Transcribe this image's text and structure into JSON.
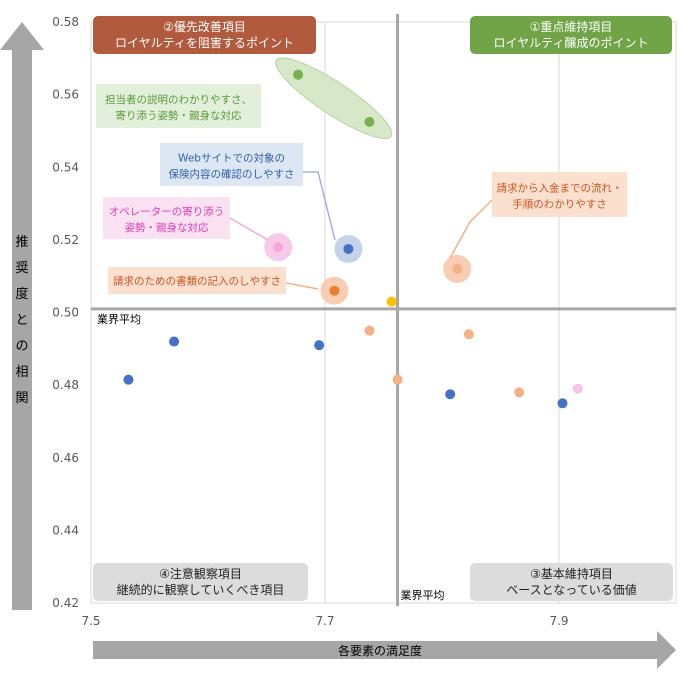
{
  "chart_data": {
    "type": "scatter",
    "xlabel": "各要素の満足度",
    "ylabel": "推奨度との相関",
    "xlim": [
      7.5,
      8.0
    ],
    "ylim": [
      0.42,
      0.58
    ],
    "x_ticks": [
      7.5,
      7.7,
      7.9
    ],
    "x_tick_labels": [
      "7.5",
      "7.7",
      "7.9"
    ],
    "y_ticks": [
      0.42,
      0.44,
      0.46,
      0.48,
      0.5,
      0.52,
      0.54,
      0.56,
      0.58
    ],
    "y_tick_labels": [
      "0.42",
      "0.44",
      "0.46",
      "0.48",
      "0.50",
      "0.52",
      "0.54",
      "0.56",
      "0.58"
    ],
    "grid": "vertical and horizontal",
    "average_lines": {
      "x": 7.762,
      "y": 0.501,
      "x_label": "業界平均",
      "y_label": "業界平均"
    },
    "quadrants": [
      {
        "id": "tl",
        "position": "top-left",
        "line1": "②優先改善項目",
        "line2": "ロイヤルティを阻害するポイント",
        "fill": "#b25a3e",
        "text_color": "#ffffff"
      },
      {
        "id": "tr",
        "position": "top-right",
        "line1": "①重点維持項目",
        "line2": "ロイヤルティ醸成のポイント",
        "fill": "#70a447",
        "text_color": "#ffffff"
      },
      {
        "id": "bl",
        "position": "bottom-left",
        "line1": "④注意観察項目",
        "line2": "継続的に観察していくべき項目",
        "fill": "#dcdcdc",
        "text_color": "#222222"
      },
      {
        "id": "br",
        "position": "bottom-right",
        "line1": "③基本維持項目",
        "line2": "ベースとなっている価値",
        "fill": "#dcdcdc",
        "text_color": "#222222"
      }
    ],
    "points": [
      {
        "x": 7.677,
        "y": 0.5655,
        "color": "#78b050"
      },
      {
        "x": 7.738,
        "y": 0.5525,
        "color": "#78b050"
      },
      {
        "x": 7.72,
        "y": 0.5175,
        "color": "#4472c4"
      },
      {
        "x": 7.66,
        "y": 0.518,
        "color": "#f4a7d8"
      },
      {
        "x": 7.708,
        "y": 0.506,
        "color": "#ed7d31"
      },
      {
        "x": 7.813,
        "y": 0.512,
        "color": "#f4b183"
      },
      {
        "x": 7.757,
        "y": 0.503,
        "color": "#ffc000"
      },
      {
        "x": 7.571,
        "y": 0.492,
        "color": "#4472c4"
      },
      {
        "x": 7.695,
        "y": 0.491,
        "color": "#4472c4"
      },
      {
        "x": 7.738,
        "y": 0.495,
        "color": "#f4b183"
      },
      {
        "x": 7.823,
        "y": 0.494,
        "color": "#f4b183"
      },
      {
        "x": 7.532,
        "y": 0.4815,
        "color": "#4472c4"
      },
      {
        "x": 7.762,
        "y": 0.4815,
        "color": "#f4b183"
      },
      {
        "x": 7.807,
        "y": 0.4775,
        "color": "#4472c4"
      },
      {
        "x": 7.866,
        "y": 0.478,
        "color": "#f4b183"
      },
      {
        "x": 7.903,
        "y": 0.475,
        "color": "#4472c4"
      },
      {
        "x": 7.916,
        "y": 0.479,
        "color": "#f4c6e6"
      }
    ],
    "callouts": [
      {
        "id": "c1",
        "line1": "担当者の説明のわかりやすさ、",
        "line2": "寄り添う姿勢・親身な対応",
        "fill": "#e2efda",
        "text_color": "#5a9a3a",
        "highlight": "green-ellipse"
      },
      {
        "id": "c2",
        "line1": "Webサイトでの対象の",
        "line2": "保険内容の確認のしやすさ",
        "fill": "#dde7f4",
        "text_color": "#2f5fa8",
        "highlight": "blue-halo"
      },
      {
        "id": "c3",
        "line1": "オペレーターの寄り添う",
        "line2": "姿勢・親身な対応",
        "fill": "#fbe2f3",
        "text_color": "#e33ab5",
        "highlight": "pink-halo"
      },
      {
        "id": "c4",
        "line1": "請求のための書類の記入のしやすさ",
        "line2": "",
        "fill": "#fbe0cf",
        "text_color": "#c9541e",
        "highlight": "orange-halo"
      },
      {
        "id": "c5",
        "line1": "請求から入金までの流れ・",
        "line2": "手順のわかりやすさ",
        "fill": "#fbe0cf",
        "text_color": "#c9541e",
        "highlight": "orange-halo"
      }
    ],
    "colors": {
      "axis_arrow": "#a6a6a6",
      "grid": "#d9d9d9",
      "average_line": "#a6a6a6"
    }
  }
}
